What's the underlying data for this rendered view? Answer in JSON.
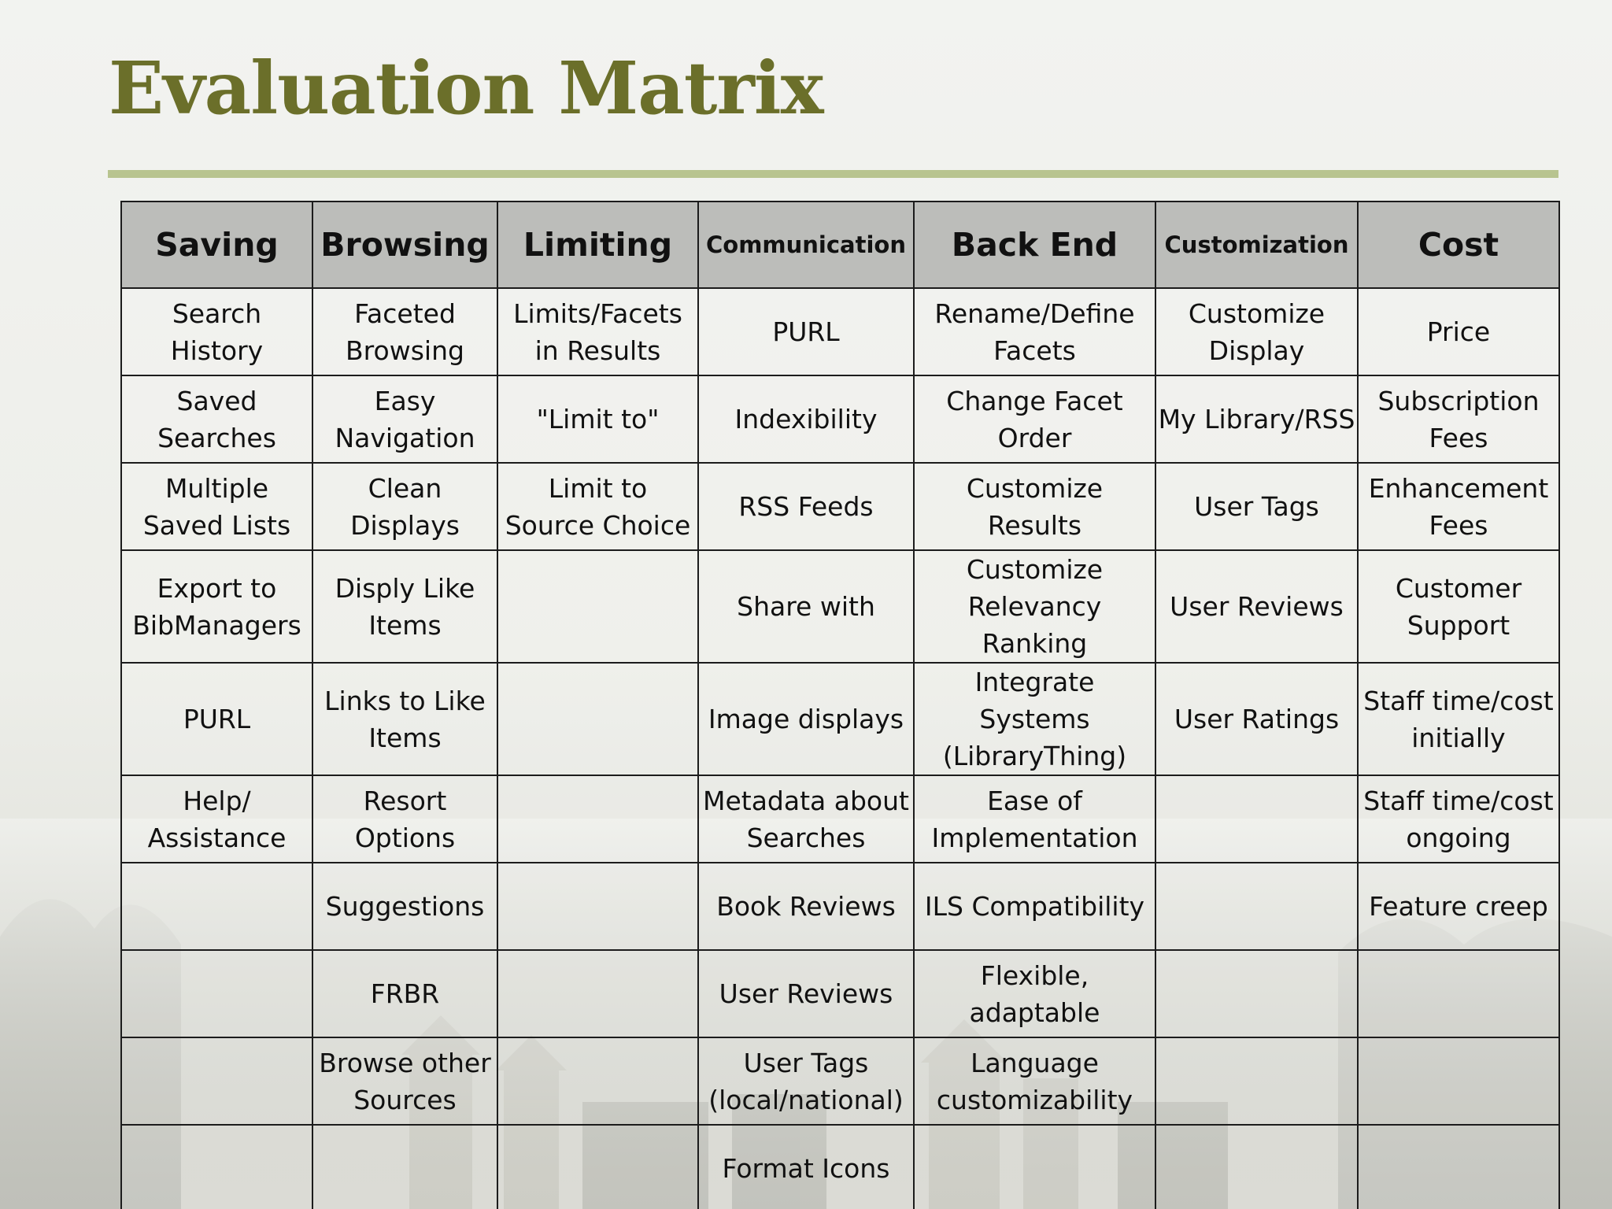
{
  "slide": {
    "title": "Evaluation Matrix"
  },
  "table": {
    "headers": [
      "Saving",
      "Browsing",
      "Limiting",
      "Communication",
      "Back End",
      "Customization",
      "Cost"
    ],
    "rows": [
      [
        "Search History",
        "Faceted Browsing",
        "Limits/Facets in Results",
        "PURL",
        "Rename/Define Facets",
        "Customize Display",
        "Price"
      ],
      [
        "Saved Searches",
        "Easy Navigation",
        "\"Limit to\"",
        "Indexibility",
        "Change Facet Order",
        "My Library/RSS",
        "Subscription Fees"
      ],
      [
        "Multiple Saved Lists",
        "Clean Displays",
        "Limit to Source Choice",
        "RSS Feeds",
        "Customize Results",
        "User Tags",
        "Enhancement Fees"
      ],
      [
        "Export to BibManagers",
        "Disply Like Items",
        "",
        "Share with",
        "Customize Relevancy Ranking",
        "User Reviews",
        "Customer Support"
      ],
      [
        "PURL",
        "Links to Like Items",
        "",
        "Image displays",
        "Integrate Systems (LibraryThing)",
        "User Ratings",
        "Staff time/cost initially"
      ],
      [
        "Help/ Assistance",
        "Resort Options",
        "",
        "Metadata about Searches",
        "Ease of Implementation",
        "",
        "Staff time/cost ongoing"
      ],
      [
        "",
        "Suggestions",
        "",
        "Book Reviews",
        "ILS Compatibility",
        "",
        "Feature creep"
      ],
      [
        "",
        "FRBR",
        "",
        "User Reviews",
        "Flexible, adaptable",
        "",
        ""
      ],
      [
        "",
        "Browse other Sources",
        "",
        "User Tags (local/national)",
        "Language customizability",
        "",
        ""
      ],
      [
        "",
        "",
        "",
        "Format Icons",
        "",
        "",
        ""
      ]
    ]
  },
  "colors": {
    "title": "#6b6f2a",
    "rule": "#b8c48f",
    "header_bg": "#bcbdba",
    "border": "#1c1c1c"
  }
}
